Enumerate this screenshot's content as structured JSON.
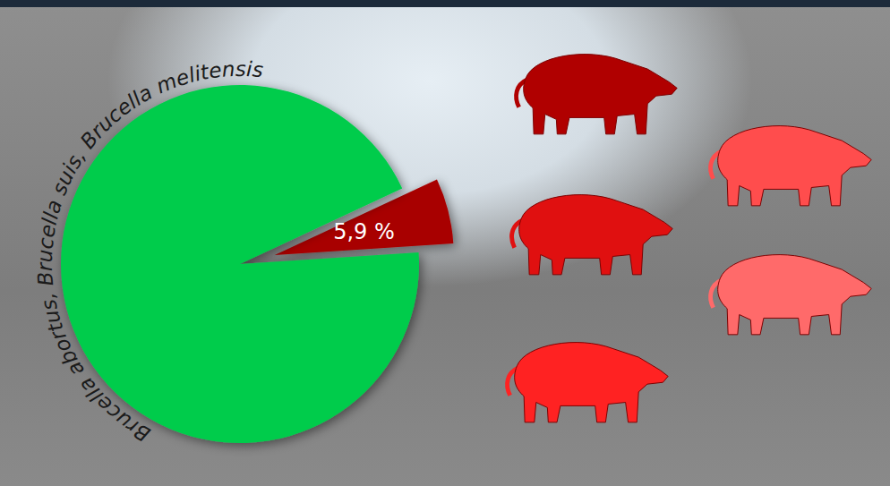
{
  "chart_data": {
    "type": "pie",
    "values": [
      5.9,
      94.1
    ],
    "value_labels": [
      "5,9 %",
      null
    ],
    "colors": [
      "#a80000",
      "#00cc4c"
    ],
    "data_labels": true,
    "annotations": [
      "Brucella abortus, Brucella suis, Brucella melitensis"
    ]
  }
}
